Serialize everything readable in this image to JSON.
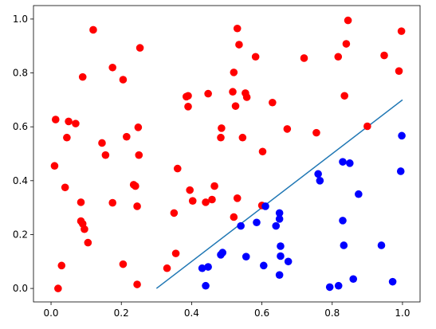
{
  "chart_data": {
    "type": "scatter",
    "title": "",
    "xlabel": "",
    "ylabel": "",
    "xlim": [
      -0.05,
      1.05
    ],
    "ylim": [
      -0.05,
      1.05
    ],
    "grid": false,
    "x_ticks": [
      {
        "value": 0.0,
        "label": "0.0"
      },
      {
        "value": 0.2,
        "label": "0.2"
      },
      {
        "value": 0.4,
        "label": "0.4"
      },
      {
        "value": 0.6,
        "label": "0.6"
      },
      {
        "value": 0.8,
        "label": "0.8"
      },
      {
        "value": 1.0,
        "label": "1.0"
      }
    ],
    "y_ticks": [
      {
        "value": 0.0,
        "label": "0.0"
      },
      {
        "value": 0.2,
        "label": "0.2"
      },
      {
        "value": 0.4,
        "label": "0.4"
      },
      {
        "value": 0.6,
        "label": "0.6"
      },
      {
        "value": 0.8,
        "label": "0.8"
      },
      {
        "value": 1.0,
        "label": "1.0"
      }
    ],
    "series": [
      {
        "color": "#ff0000",
        "marker": "circle",
        "points": [
          [
            0.01,
            0.455
          ],
          [
            0.013,
            0.627
          ],
          [
            0.02,
            0.0
          ],
          [
            0.03,
            0.085
          ],
          [
            0.04,
            0.375
          ],
          [
            0.045,
            0.56
          ],
          [
            0.05,
            0.62
          ],
          [
            0.07,
            0.612
          ],
          [
            0.085,
            0.32
          ],
          [
            0.085,
            0.25
          ],
          [
            0.09,
            0.24
          ],
          [
            0.09,
            0.785
          ],
          [
            0.095,
            0.22
          ],
          [
            0.105,
            0.17
          ],
          [
            0.12,
            0.96
          ],
          [
            0.145,
            0.54
          ],
          [
            0.155,
            0.495
          ],
          [
            0.175,
            0.82
          ],
          [
            0.175,
            0.318
          ],
          [
            0.205,
            0.09
          ],
          [
            0.205,
            0.775
          ],
          [
            0.215,
            0.563
          ],
          [
            0.235,
            0.385
          ],
          [
            0.24,
            0.38
          ],
          [
            0.245,
            0.305
          ],
          [
            0.245,
            0.015
          ],
          [
            0.248,
            0.598
          ],
          [
            0.25,
            0.495
          ],
          [
            0.253,
            0.893
          ],
          [
            0.33,
            0.075
          ],
          [
            0.35,
            0.28
          ],
          [
            0.355,
            0.13
          ],
          [
            0.36,
            0.445
          ],
          [
            0.385,
            0.712
          ],
          [
            0.39,
            0.715
          ],
          [
            0.39,
            0.675
          ],
          [
            0.395,
            0.365
          ],
          [
            0.403,
            0.325
          ],
          [
            0.44,
            0.32
          ],
          [
            0.447,
            0.723
          ],
          [
            0.458,
            0.33
          ],
          [
            0.465,
            0.38
          ],
          [
            0.483,
            0.56
          ],
          [
            0.485,
            0.595
          ],
          [
            0.517,
            0.73
          ],
          [
            0.52,
            0.265
          ],
          [
            0.52,
            0.802
          ],
          [
            0.525,
            0.677
          ],
          [
            0.53,
            0.965
          ],
          [
            0.53,
            0.335
          ],
          [
            0.535,
            0.905
          ],
          [
            0.545,
            0.56
          ],
          [
            0.553,
            0.725
          ],
          [
            0.557,
            0.71
          ],
          [
            0.582,
            0.86
          ],
          [
            0.6,
            0.308
          ],
          [
            0.602,
            0.508
          ],
          [
            0.63,
            0.69
          ],
          [
            0.672,
            0.592
          ],
          [
            0.72,
            0.855
          ],
          [
            0.755,
            0.578
          ],
          [
            0.817,
            0.86
          ],
          [
            0.835,
            0.715
          ],
          [
            0.84,
            0.908
          ],
          [
            0.845,
            0.995
          ],
          [
            0.9,
            0.602
          ],
          [
            0.948,
            0.865
          ],
          [
            0.99,
            0.807
          ],
          [
            0.997,
            0.955
          ]
        ]
      },
      {
        "color": "#0000ff",
        "marker": "circle",
        "points": [
          [
            0.43,
            0.075
          ],
          [
            0.44,
            0.01
          ],
          [
            0.447,
            0.08
          ],
          [
            0.483,
            0.125
          ],
          [
            0.488,
            0.133
          ],
          [
            0.54,
            0.232
          ],
          [
            0.555,
            0.118
          ],
          [
            0.585,
            0.245
          ],
          [
            0.605,
            0.085
          ],
          [
            0.61,
            0.305
          ],
          [
            0.64,
            0.232
          ],
          [
            0.65,
            0.28
          ],
          [
            0.65,
            0.258
          ],
          [
            0.653,
            0.157
          ],
          [
            0.653,
            0.12
          ],
          [
            0.65,
            0.05
          ],
          [
            0.675,
            0.1
          ],
          [
            0.76,
            0.425
          ],
          [
            0.765,
            0.4
          ],
          [
            0.793,
            0.005
          ],
          [
            0.818,
            0.01
          ],
          [
            0.83,
            0.47
          ],
          [
            0.83,
            0.252
          ],
          [
            0.833,
            0.16
          ],
          [
            0.85,
            0.465
          ],
          [
            0.86,
            0.035
          ],
          [
            0.875,
            0.35
          ],
          [
            0.94,
            0.16
          ],
          [
            0.972,
            0.025
          ],
          [
            0.995,
            0.435
          ],
          [
            0.998,
            0.567
          ]
        ]
      }
    ],
    "lines": [
      {
        "color": "#1f77b4",
        "x": [
          0.3,
          1.0
        ],
        "y": [
          0.0,
          0.7
        ]
      }
    ]
  }
}
